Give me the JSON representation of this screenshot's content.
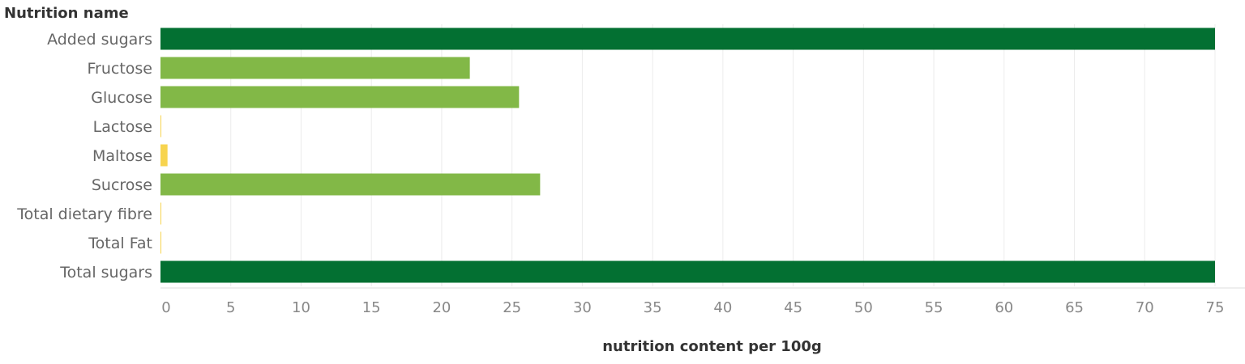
{
  "chart_data": {
    "type": "bar",
    "orientation": "horizontal",
    "row_header": "Nutrition name",
    "xlabel": "nutrition content per 100g",
    "xlim": [
      0,
      75
    ],
    "x_ticks": [
      0,
      5,
      10,
      15,
      20,
      25,
      30,
      35,
      40,
      45,
      50,
      55,
      60,
      65,
      70,
      75
    ],
    "grid": true,
    "categories": [
      "Added sugars",
      "Fructose",
      "Glucose",
      "Lactose",
      "Maltose",
      "Sucrose",
      "Total dietary fibre",
      "Total Fat",
      "Total sugars"
    ],
    "values": [
      75,
      22,
      25.5,
      0.05,
      0.5,
      27,
      0.05,
      0.05,
      75
    ],
    "colors": [
      "#037032",
      "#82b847",
      "#82b847",
      "#f7d44f",
      "#f7d44f",
      "#82b847",
      "#f7d44f",
      "#f7d44f",
      "#037032"
    ]
  }
}
